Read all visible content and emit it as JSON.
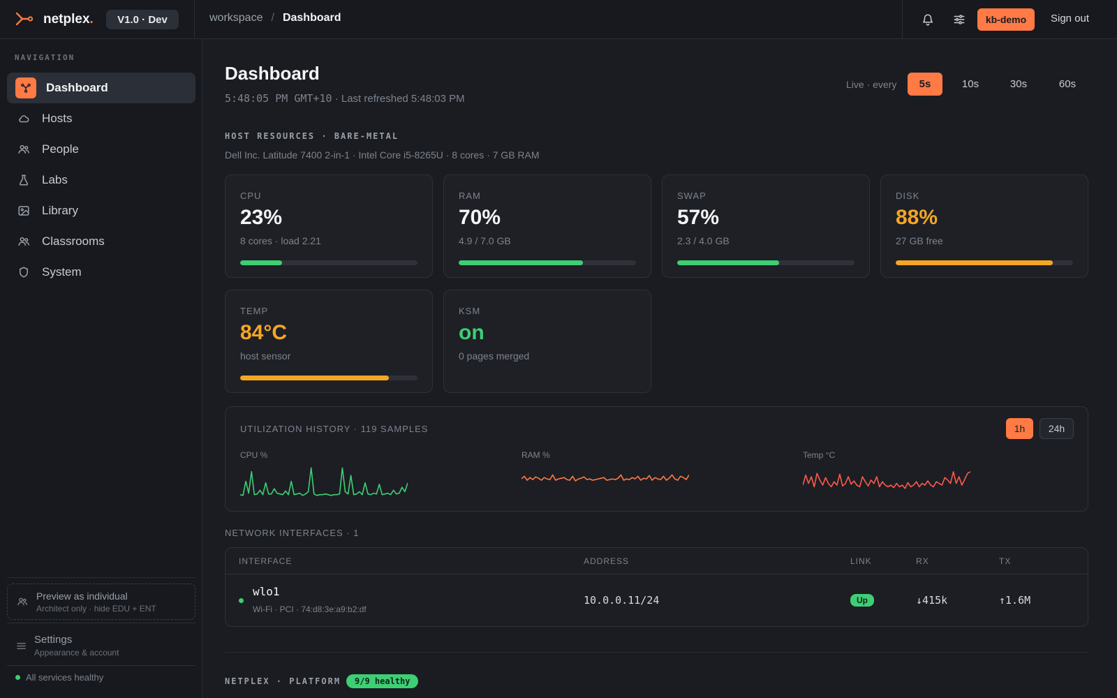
{
  "app": {
    "name": "netplex",
    "name_dot": ".",
    "version": "V1.0 · Dev"
  },
  "breadcrumb": {
    "parent": "workspace",
    "separator": "/",
    "current": "Dashboard"
  },
  "header": {
    "user": "kb-demo",
    "signout": "Sign out",
    "icons": [
      "bell-icon",
      "sliders-icon"
    ]
  },
  "sidebar": {
    "title": "NAVIGATION",
    "items": [
      {
        "label": "Dashboard",
        "icon": "dashboard-icon",
        "active": true
      },
      {
        "label": "Hosts",
        "icon": "cloud-icon"
      },
      {
        "label": "People",
        "icon": "people-icon"
      },
      {
        "label": "Labs",
        "icon": "flask-icon"
      },
      {
        "label": "Library",
        "icon": "image-icon"
      },
      {
        "label": "Classrooms",
        "icon": "people-icon"
      },
      {
        "label": "System",
        "icon": "shield-icon"
      }
    ],
    "preview": {
      "title": "Preview as individual",
      "subtitle": "Architect only · hide EDU + ENT"
    },
    "settings": {
      "title": "Settings",
      "subtitle": "Appearance & account"
    },
    "status": "All services healthy"
  },
  "page": {
    "title": "Dashboard",
    "time": "5:48:05 PM GMT+10",
    "refreshed": " · Last refreshed 5:48:03 PM",
    "live_label": "Live · every",
    "intervals": [
      "5s",
      "10s",
      "30s",
      "60s"
    ],
    "active_interval": "5s"
  },
  "host": {
    "section": "HOST RESOURCES · BARE-METAL",
    "description": "Dell Inc. Latitude 7400 2-in-1 · Intel Core i5-8265U · 8 cores · 7 GB RAM",
    "cards": [
      {
        "label": "CPU",
        "value": "23%",
        "sub": "8 cores · load 2.21",
        "fraction": 0.235,
        "color": "#3ecf74",
        "value_color": "#f3f4f6"
      },
      {
        "label": "RAM",
        "value": "70%",
        "sub": "4.9 / 7.0 GB",
        "fraction": 0.7,
        "color": "#3ecf74",
        "value_color": "#f3f4f6"
      },
      {
        "label": "SWAP",
        "value": "57%",
        "sub": "2.3 / 4.0 GB",
        "fraction": 0.575,
        "color": "#3ecf74",
        "value_color": "#f3f4f6"
      },
      {
        "label": "DISK",
        "value": "88%",
        "sub": "27 GB free",
        "fraction": 0.885,
        "color": "#f5a623",
        "value_color": "#f5a623"
      },
      {
        "label": "TEMP",
        "value": "84°C",
        "sub": "host sensor",
        "fraction": 0.84,
        "color": "#f5a623",
        "value_color": "#f5a623"
      },
      {
        "label": "KSM",
        "value": "on",
        "sub": "0 pages merged",
        "fraction": null,
        "color": "#3ecf74",
        "value_color": "#3ecf74"
      }
    ]
  },
  "utilization": {
    "title": "UTILIZATION HISTORY · 119 SAMPLES",
    "ranges": [
      "1h",
      "24h"
    ],
    "active_range": "1h",
    "series": [
      {
        "label": "CPU %",
        "color": "#3ecf74",
        "values": [
          4,
          3,
          22,
          6,
          35,
          4,
          5,
          10,
          4,
          20,
          5,
          5,
          12,
          6,
          5,
          4,
          9,
          4,
          22,
          4,
          5,
          6,
          3,
          5,
          8,
          40,
          5,
          3,
          4,
          4,
          5,
          4,
          3,
          4,
          4,
          5,
          40,
          8,
          5,
          30,
          4,
          5,
          8,
          4,
          20,
          5,
          4,
          6,
          5,
          18,
          4,
          5,
          6,
          4,
          10,
          5,
          6,
          14,
          8,
          20
        ]
      },
      {
        "label": "RAM %",
        "color": "#ff7a45",
        "values": [
          68,
          72,
          66,
          70,
          67,
          71,
          69,
          66,
          70,
          68,
          67,
          74,
          66,
          68,
          69,
          70,
          67,
          66,
          72,
          65,
          68,
          69,
          71,
          67,
          68,
          66,
          67,
          68,
          69,
          70,
          66,
          67,
          68,
          67,
          69,
          74,
          66,
          68,
          67,
          70,
          68,
          72,
          66,
          69,
          68,
          73,
          66,
          70,
          68,
          67,
          72,
          66,
          69,
          74,
          68,
          66,
          72,
          70,
          67,
          74
        ]
      },
      {
        "label": "Temp °C",
        "color": "#ff5a4a",
        "values": [
          70,
          82,
          72,
          80,
          68,
          84,
          76,
          70,
          79,
          72,
          68,
          74,
          70,
          83,
          69,
          72,
          80,
          71,
          75,
          70,
          68,
          80,
          74,
          69,
          76,
          72,
          80,
          68,
          74,
          70,
          68,
          70,
          67,
          72,
          68,
          70,
          66,
          73,
          68,
          70,
          74,
          68,
          72,
          70,
          75,
          70,
          68,
          74,
          72,
          70,
          79,
          76,
          72,
          86,
          72,
          80,
          70,
          77,
          84,
          86
        ]
      }
    ]
  },
  "network": {
    "title": "NETWORK INTERFACES · 1",
    "columns": {
      "interface": "INTERFACE",
      "address": "ADDRESS",
      "link": "LINK",
      "rx": "RX",
      "tx": "TX"
    },
    "rows": [
      {
        "name": "wlo1",
        "detail": "Wi-Fi · PCI · 74:d8:3e:a9:b2:df",
        "address": "10.0.0.11/24",
        "link": "Up",
        "rx": "↓415k",
        "tx": "↑1.6M"
      }
    ]
  },
  "platform": {
    "label": "NETPLEX · PLATFORM",
    "badge": "9/9 healthy"
  }
}
